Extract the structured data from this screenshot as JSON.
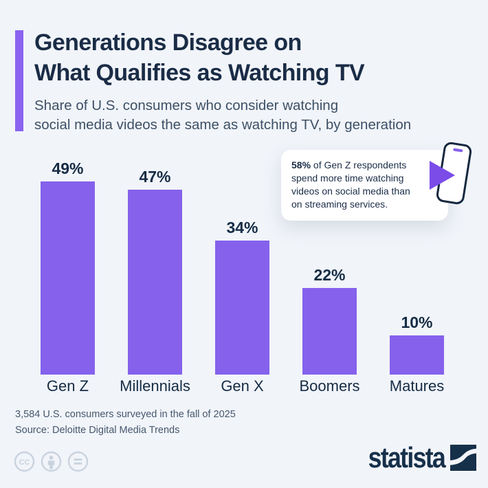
{
  "header": {
    "title_lines": [
      "Generations Disagree on",
      "What Qualifies as Watching TV"
    ],
    "subtitle_lines": [
      "Share of U.S. consumers who consider watching",
      "social media videos the same as watching TV, by generation"
    ]
  },
  "callout": {
    "highlight": "58%",
    "line1_rest": " of Gen Z respondents",
    "line2": "spend more time watching",
    "line3": "videos on social media than",
    "line4": "on streaming services."
  },
  "chart_data": {
    "type": "bar",
    "categories": [
      "Gen Z",
      "Millennials",
      "Gen X",
      "Boomers",
      "Matures"
    ],
    "values": [
      49,
      47,
      34,
      22,
      10
    ],
    "value_labels": [
      "49%",
      "47%",
      "34%",
      "22%",
      "10%"
    ],
    "unit": "%",
    "title": "Generations Disagree on What Qualifies as Watching TV",
    "subtitle": "Share of U.S. consumers who consider watching social media videos the same as watching TV, by generation",
    "xlabel": "",
    "ylabel": "",
    "ylim": [
      0,
      55
    ],
    "grid": false,
    "legend": false,
    "bar_color": "#8561EC"
  },
  "icons": {
    "smartphone": "smartphone-icon",
    "play": "play-triangle-icon",
    "cc": "cc-icon",
    "attribution": "attribution-person-icon",
    "no-derivatives": "equals-icon",
    "statista_mark": "statista-swoosh-icon"
  },
  "footer": {
    "note": "3,584 U.S. consumers surveyed in the fall of 2025",
    "source": "Source: Deloitte Digital Media Trends",
    "brand": "statista"
  },
  "colors": {
    "background": "#F1F4F9",
    "title": "#1A2C46",
    "subtitle": "#3D5066",
    "bar": "#8561EC",
    "accent_bar": "#8A63F0",
    "play_triangle": "#7B4CE8",
    "phone_outline": "#15283F",
    "footnote": "#46586D",
    "brand_navy": "#16304A",
    "license_icon": "#C9D3DE"
  }
}
